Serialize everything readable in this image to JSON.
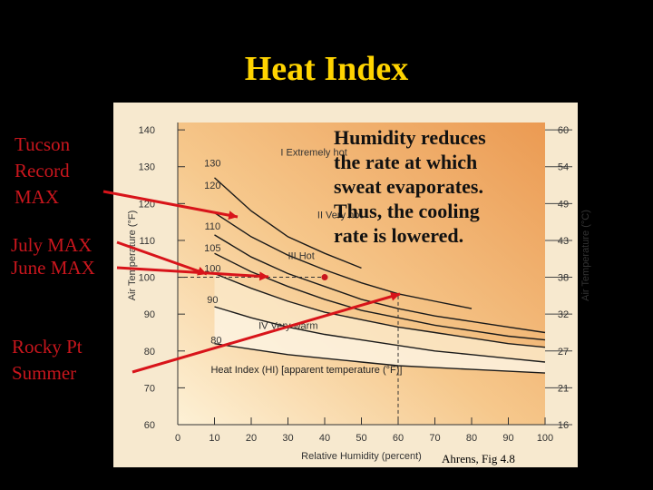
{
  "slide": {
    "title": "Heat Index",
    "labels": {
      "tucson": [
        "Tucson",
        "Record",
        "MAX"
      ],
      "july_june": [
        "July MAX",
        "June MAX"
      ],
      "rocky": [
        "Rocky Pt",
        "Summer"
      ]
    },
    "note": [
      "Humidity reduces",
      "the rate at which",
      "sweat evaporates.",
      "Thus, the cooling",
      "rate is lowered."
    ],
    "credit": "Ahrens, Fig 4.8",
    "colors": {
      "title": "#ffd400",
      "labels": "#c8161d",
      "arrows": "#d8141a"
    }
  },
  "chart_data": {
    "type": "line",
    "xlabel": "Relative Humidity (percent)",
    "ylabel": "Air Temperature (°F)",
    "ylabel_right": "Air Temperature (°C)",
    "x_ticks": [
      0,
      10,
      20,
      30,
      40,
      50,
      60,
      70,
      80,
      90,
      100
    ],
    "y_ticks": [
      60,
      70,
      80,
      90,
      100,
      110,
      120,
      130,
      140
    ],
    "y_ticks_right": [
      "16",
      "21",
      "27",
      "32",
      "38",
      "43",
      "49",
      "54",
      "60"
    ],
    "xlim": [
      0,
      100
    ],
    "ylim": [
      60,
      142
    ],
    "legend": "Heat Index (HI) [apparent temperature (°F)]",
    "zones": [
      "I  Extremely hot",
      "II  Very hot",
      "III  Hot",
      "IV  Very warm"
    ],
    "series": [
      {
        "name": "130",
        "x": [
          10,
          20,
          30,
          40,
          50
        ],
        "y": [
          127,
          118,
          111,
          106.5,
          102.5
        ]
      },
      {
        "name": "120",
        "x": [
          10,
          20,
          30,
          40,
          50,
          60,
          70,
          80
        ],
        "y": [
          117.5,
          111,
          106,
          102,
          98.5,
          95.5,
          93.5,
          91.5
        ]
      },
      {
        "name": "110",
        "x": [
          10,
          20,
          30,
          40,
          50,
          60,
          70,
          80,
          90,
          100
        ],
        "y": [
          111.5,
          105.5,
          101,
          97.5,
          94,
          91.5,
          89.5,
          88,
          86.5,
          85
        ]
      },
      {
        "name": "105",
        "x": [
          10,
          20,
          30,
          40,
          50,
          60,
          70,
          80,
          90,
          100
        ],
        "y": [
          106.5,
          101.5,
          97.5,
          94,
          91,
          89,
          87,
          85.5,
          84,
          83
        ]
      },
      {
        "name": "100",
        "x": [
          10,
          20,
          30,
          40,
          50,
          60,
          70,
          80,
          90,
          100
        ],
        "y": [
          101,
          97,
          93.5,
          90.5,
          88.5,
          86.5,
          85,
          83.5,
          82,
          81
        ]
      },
      {
        "name": "90",
        "x": [
          10,
          20,
          30,
          40,
          50,
          60,
          70,
          80,
          90,
          100
        ],
        "y": [
          92,
          89,
          86.5,
          84.5,
          83,
          81.5,
          80,
          79,
          78,
          77
        ]
      },
      {
        "name": "80",
        "x": [
          10,
          20,
          30,
          40,
          50,
          60,
          70,
          80,
          90,
          100
        ],
        "y": [
          82,
          80.5,
          79,
          78,
          77,
          76,
          75.5,
          75,
          74.5,
          74
        ]
      }
    ],
    "hi_labels": [
      {
        "text": "130",
        "x": 7,
        "y": 130
      },
      {
        "text": "120",
        "x": 7,
        "y": 124
      },
      {
        "text": "110",
        "x": 7,
        "y": 113
      },
      {
        "text": "105",
        "x": 7,
        "y": 107
      },
      {
        "text": "100",
        "x": 7,
        "y": 101.5
      },
      {
        "text": "90",
        "x": 7,
        "y": 93
      },
      {
        "text": "80",
        "x": 8,
        "y": 82
      }
    ],
    "reference_points": [
      {
        "x": 40,
        "y": 100
      },
      {
        "x": 60,
        "y": 95
      }
    ]
  }
}
